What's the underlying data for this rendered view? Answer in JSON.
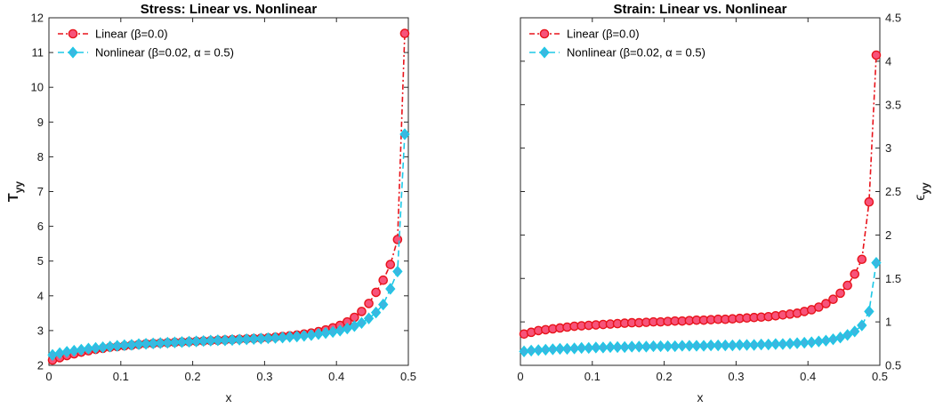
{
  "chart_data": [
    {
      "type": "line",
      "title": "Stress: Linear vs. Nonlinear",
      "xlabel": "x",
      "ylabel": "T",
      "ylabel_sub": "yy",
      "xlim": [
        0,
        0.5
      ],
      "ylim": [
        2,
        12
      ],
      "xticks": [
        "0",
        "0.1",
        "0.2",
        "0.3",
        "0.4",
        "0.5"
      ],
      "yticks": [
        "2",
        "3",
        "4",
        "5",
        "6",
        "7",
        "8",
        "9",
        "10",
        "11",
        "12"
      ],
      "y_axis_side": "left",
      "legend": "top-left",
      "grid": false,
      "series": [
        {
          "name": "Linear (β=0.0)",
          "color": "#e8131b",
          "marker": "circle",
          "x": [
            0.005,
            0.015,
            0.025,
            0.035,
            0.045,
            0.055,
            0.065,
            0.075,
            0.085,
            0.095,
            0.105,
            0.115,
            0.125,
            0.135,
            0.145,
            0.155,
            0.165,
            0.175,
            0.185,
            0.195,
            0.205,
            0.215,
            0.225,
            0.235,
            0.245,
            0.255,
            0.265,
            0.275,
            0.285,
            0.295,
            0.305,
            0.315,
            0.325,
            0.335,
            0.345,
            0.355,
            0.365,
            0.375,
            0.385,
            0.395,
            0.405,
            0.415,
            0.425,
            0.435,
            0.445,
            0.455,
            0.465,
            0.475,
            0.485,
            0.495
          ],
          "values": [
            2.15,
            2.22,
            2.28,
            2.33,
            2.38,
            2.42,
            2.46,
            2.49,
            2.52,
            2.54,
            2.56,
            2.58,
            2.6,
            2.62,
            2.63,
            2.64,
            2.65,
            2.66,
            2.67,
            2.68,
            2.69,
            2.7,
            2.71,
            2.72,
            2.73,
            2.74,
            2.75,
            2.76,
            2.77,
            2.78,
            2.79,
            2.81,
            2.83,
            2.85,
            2.87,
            2.9,
            2.93,
            2.97,
            3.02,
            3.08,
            3.15,
            3.25,
            3.38,
            3.55,
            3.78,
            4.1,
            4.45,
            4.9,
            5.62,
            11.55
          ]
        },
        {
          "name": "Nonlinear (β=0.02, α = 0.5)",
          "color": "#1ec8e6",
          "marker": "diamond",
          "x": [
            0.005,
            0.015,
            0.025,
            0.035,
            0.045,
            0.055,
            0.065,
            0.075,
            0.085,
            0.095,
            0.105,
            0.115,
            0.125,
            0.135,
            0.145,
            0.155,
            0.165,
            0.175,
            0.185,
            0.195,
            0.205,
            0.215,
            0.225,
            0.235,
            0.245,
            0.255,
            0.265,
            0.275,
            0.285,
            0.295,
            0.305,
            0.315,
            0.325,
            0.335,
            0.345,
            0.355,
            0.365,
            0.375,
            0.385,
            0.395,
            0.405,
            0.415,
            0.425,
            0.435,
            0.445,
            0.455,
            0.465,
            0.475,
            0.485,
            0.495
          ],
          "values": [
            2.3,
            2.35,
            2.39,
            2.42,
            2.45,
            2.48,
            2.5,
            2.52,
            2.54,
            2.56,
            2.58,
            2.59,
            2.61,
            2.62,
            2.63,
            2.64,
            2.65,
            2.66,
            2.67,
            2.68,
            2.69,
            2.7,
            2.71,
            2.72,
            2.72,
            2.73,
            2.74,
            2.75,
            2.76,
            2.77,
            2.78,
            2.79,
            2.8,
            2.82,
            2.83,
            2.85,
            2.87,
            2.9,
            2.93,
            2.96,
            3.0,
            3.06,
            3.13,
            3.22,
            3.35,
            3.52,
            3.75,
            4.2,
            4.7,
            8.65
          ]
        }
      ]
    },
    {
      "type": "line",
      "title": "Strain: Linear vs. Nonlinear",
      "xlabel": "x",
      "ylabel": "ϵ",
      "ylabel_sub": "yy",
      "xlim": [
        0,
        0.5
      ],
      "ylim": [
        0.5,
        4.5
      ],
      "xticks": [
        "0",
        "0.1",
        "0.2",
        "0.3",
        "0.4",
        "0.5"
      ],
      "yticks": [
        "0.5",
        "1",
        "1.5",
        "2",
        "2.5",
        "3",
        "3.5",
        "4",
        "4.5"
      ],
      "y_axis_side": "right",
      "legend": "top-left",
      "grid": false,
      "series": [
        {
          "name": "Linear (β=0.0)",
          "color": "#e8131b",
          "marker": "circle",
          "x": [
            0.005,
            0.015,
            0.025,
            0.035,
            0.045,
            0.055,
            0.065,
            0.075,
            0.085,
            0.095,
            0.105,
            0.115,
            0.125,
            0.135,
            0.145,
            0.155,
            0.165,
            0.175,
            0.185,
            0.195,
            0.205,
            0.215,
            0.225,
            0.235,
            0.245,
            0.255,
            0.265,
            0.275,
            0.285,
            0.295,
            0.305,
            0.315,
            0.325,
            0.335,
            0.345,
            0.355,
            0.365,
            0.375,
            0.385,
            0.395,
            0.405,
            0.415,
            0.425,
            0.435,
            0.445,
            0.455,
            0.465,
            0.475,
            0.485,
            0.495
          ],
          "values": [
            0.86,
            0.88,
            0.9,
            0.91,
            0.92,
            0.93,
            0.94,
            0.95,
            0.955,
            0.96,
            0.965,
            0.97,
            0.975,
            0.98,
            0.985,
            0.99,
            0.99,
            0.995,
            1.0,
            1.0,
            1.005,
            1.01,
            1.01,
            1.015,
            1.02,
            1.02,
            1.025,
            1.03,
            1.03,
            1.035,
            1.04,
            1.045,
            1.05,
            1.055,
            1.06,
            1.07,
            1.08,
            1.09,
            1.1,
            1.12,
            1.14,
            1.17,
            1.21,
            1.26,
            1.33,
            1.42,
            1.55,
            1.72,
            2.38,
            4.07
          ]
        },
        {
          "name": "Nonlinear (β=0.02, α = 0.5)",
          "color": "#1ec8e6",
          "marker": "diamond",
          "x": [
            0.005,
            0.015,
            0.025,
            0.035,
            0.045,
            0.055,
            0.065,
            0.075,
            0.085,
            0.095,
            0.105,
            0.115,
            0.125,
            0.135,
            0.145,
            0.155,
            0.165,
            0.175,
            0.185,
            0.195,
            0.205,
            0.215,
            0.225,
            0.235,
            0.245,
            0.255,
            0.265,
            0.275,
            0.285,
            0.295,
            0.305,
            0.315,
            0.325,
            0.335,
            0.345,
            0.355,
            0.365,
            0.375,
            0.385,
            0.395,
            0.405,
            0.415,
            0.425,
            0.435,
            0.445,
            0.455,
            0.465,
            0.475,
            0.485,
            0.495
          ],
          "values": [
            0.66,
            0.67,
            0.675,
            0.68,
            0.685,
            0.69,
            0.69,
            0.695,
            0.7,
            0.7,
            0.705,
            0.705,
            0.71,
            0.71,
            0.71,
            0.715,
            0.715,
            0.715,
            0.72,
            0.72,
            0.72,
            0.72,
            0.725,
            0.725,
            0.725,
            0.725,
            0.73,
            0.73,
            0.73,
            0.73,
            0.735,
            0.735,
            0.735,
            0.74,
            0.74,
            0.745,
            0.745,
            0.75,
            0.755,
            0.76,
            0.765,
            0.775,
            0.785,
            0.8,
            0.82,
            0.85,
            0.89,
            0.96,
            1.12,
            1.68
          ]
        }
      ]
    }
  ]
}
